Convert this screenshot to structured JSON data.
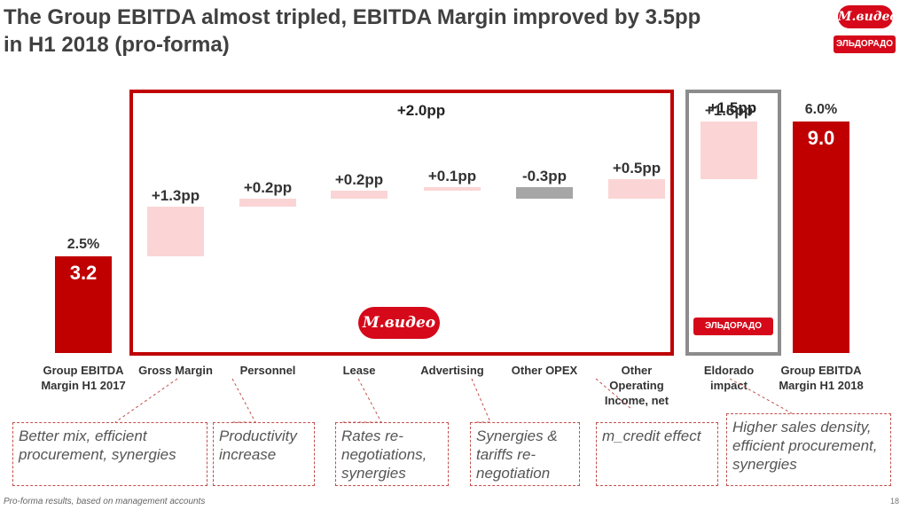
{
  "title_line1": "The Group EBITDA almost tripled, EBITDA Margin improved by 3.5pp",
  "title_line2": "in H1 2018 (pro-forma)",
  "logos": {
    "mvideo": "М.видео",
    "eldorado": "ЭЛЬДОРАДО"
  },
  "groups": {
    "mvideo_total": "+2.0pp",
    "eldorado_total": "+1.5pp"
  },
  "colors": {
    "total": "#c00000",
    "positive": "#fbd5d5",
    "negative": "#a6a6a6",
    "frame_red": "#c00000",
    "frame_gray": "#8c8c8c"
  },
  "chart_data": {
    "type": "waterfall",
    "unit": "pp",
    "categories": [
      "Group EBITDA Margin H1 2017",
      "Gross Margin",
      "Personnel",
      "Lease",
      "Advertising",
      "Other OPEX",
      "Other Operating Income, net",
      "Eldorado impact",
      "Group EBITDA Margin H1 2018"
    ],
    "category_lines": [
      [
        "Group EBITDA",
        "Margin H1 2017"
      ],
      [
        "Gross Margin"
      ],
      [
        "Personnel"
      ],
      [
        "Lease"
      ],
      [
        "Advertising"
      ],
      [
        "Other OPEX"
      ],
      [
        "Other",
        "Operating",
        "Income, net"
      ],
      [
        "Eldorado",
        "impact"
      ],
      [
        "Group EBITDA",
        "Margin H1 2018"
      ]
    ],
    "values": [
      2.5,
      1.3,
      0.2,
      0.2,
      0.1,
      -0.3,
      0.5,
      1.5,
      6.0
    ],
    "kinds": [
      "total",
      "delta",
      "delta",
      "delta",
      "delta",
      "delta",
      "delta",
      "delta",
      "total"
    ],
    "labels": [
      "2.5%",
      "+1.3pp",
      "+0.2pp",
      "+0.2pp",
      "+0.1pp",
      "-0.3pp",
      "+0.5pp",
      "+1.5pp",
      "6.0%"
    ],
    "inner_labels": [
      "3.2",
      "",
      "",
      "",
      "",
      "",
      "",
      "",
      "9.0"
    ]
  },
  "notes": [
    "Better mix, efficient procurement, synergies",
    "Productivity increase",
    "Rates re-negotiations, synergies",
    "Synergies & tariffs re-negotiation",
    "m_credit effect",
    "Higher sales density, efficient procurement, synergies"
  ],
  "footer": "Pro-forma results, based on management accounts",
  "page_number": "18"
}
